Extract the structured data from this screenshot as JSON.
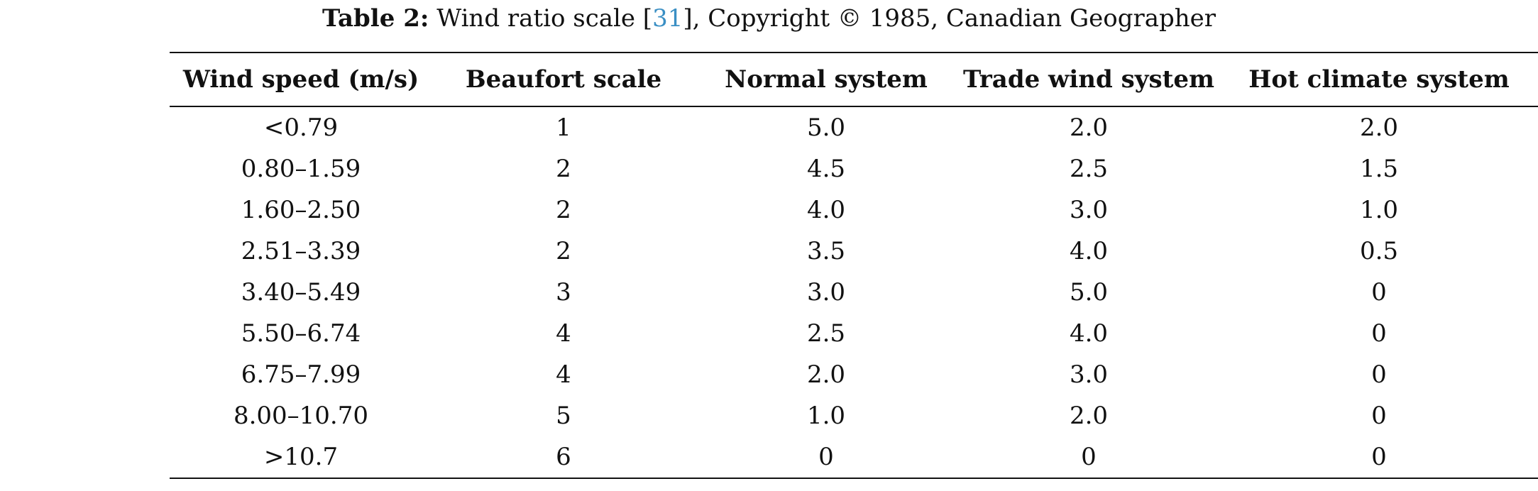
{
  "caption": {
    "label": "Table 2:",
    "text_before_ref": " Wind ratio scale [",
    "ref": "31",
    "text_after_ref": "], Copyright © 1985, Canadian Geographer"
  },
  "table": {
    "headers": [
      "Wind speed (m/s)",
      "Beaufort scale",
      "Normal system",
      "Trade wind system",
      "Hot climate system"
    ],
    "rows": [
      [
        "<0.79",
        "1",
        "5.0",
        "2.0",
        "2.0"
      ],
      [
        "0.80–1.59",
        "2",
        "4.5",
        "2.5",
        "1.5"
      ],
      [
        "1.60–2.50",
        "2",
        "4.0",
        "3.0",
        "1.0"
      ],
      [
        "2.51–3.39",
        "2",
        "3.5",
        "4.0",
        "0.5"
      ],
      [
        "3.40–5.49",
        "3",
        "3.0",
        "5.0",
        "0"
      ],
      [
        "5.50–6.74",
        "4",
        "2.5",
        "4.0",
        "0"
      ],
      [
        "6.75–7.99",
        "4",
        "2.0",
        "3.0",
        "0"
      ],
      [
        "8.00–10.70",
        "5",
        "1.0",
        "2.0",
        "0"
      ],
      [
        ">10.7",
        "6",
        "0",
        "0",
        "0"
      ]
    ]
  }
}
